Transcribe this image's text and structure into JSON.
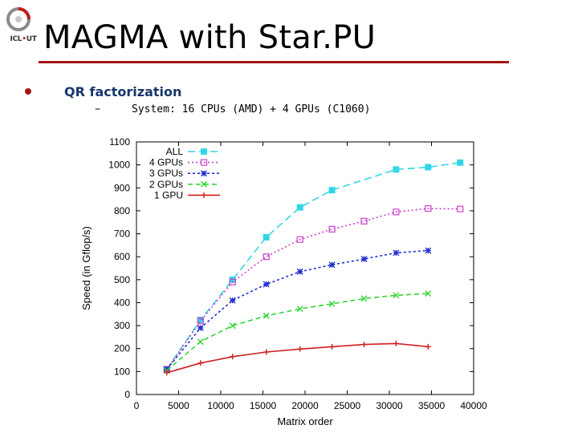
{
  "slide": {
    "title": "MAGMA with Star.PU",
    "logo_text": "ICL",
    "logo_subtext": "UT",
    "bullet": "QR factorization",
    "sub_dash": "–",
    "sub_bullet": "System: 16 CPUs (AMD) + 4 GPUs (C1060)"
  },
  "colors": {
    "accent": "#a31515",
    "bullet_text": "#17376b"
  },
  "chart_data": {
    "type": "line",
    "title": "",
    "xlabel": "Matrix order",
    "ylabel": "Speed (in Gflop/s)",
    "xlim": [
      0,
      40000
    ],
    "ylim": [
      0,
      1100
    ],
    "xticks": [
      "0",
      "5000",
      "10000",
      "15000",
      "20000",
      "25000",
      "30000",
      "35000",
      "40000"
    ],
    "yticks": [
      "0",
      "100",
      "200",
      "300",
      "400",
      "500",
      "600",
      "700",
      "800",
      "900",
      "1000",
      "1100"
    ],
    "legend_position": "top-left",
    "series": [
      {
        "name": "ALL",
        "color": "#33d6e6",
        "dash": "9,5",
        "marker": "square",
        "x": [
          3600,
          7600,
          11400,
          15400,
          19400,
          23200,
          30800,
          34600,
          38400
        ],
        "y": [
          110,
          325,
          500,
          685,
          815,
          890,
          980,
          990,
          1010
        ]
      },
      {
        "name": "4 GPUs",
        "color": "#c840c8",
        "dash": "2,3",
        "marker": "square-open",
        "x": [
          3600,
          7600,
          11400,
          15400,
          19400,
          23200,
          27000,
          30800,
          34600,
          38400
        ],
        "y": [
          110,
          320,
          490,
          600,
          675,
          720,
          755,
          795,
          810,
          808
        ]
      },
      {
        "name": "3 GPUs",
        "color": "#1f2fd1",
        "dash": "3,3",
        "marker": "star",
        "x": [
          3600,
          7600,
          11400,
          15400,
          19400,
          23200,
          27000,
          30800,
          34600
        ],
        "y": [
          110,
          290,
          410,
          480,
          535,
          565,
          590,
          617,
          627
        ]
      },
      {
        "name": "2 GPUs",
        "color": "#33d633",
        "dash": "6,4",
        "marker": "x",
        "x": [
          3600,
          7600,
          11400,
          15400,
          19400,
          23200,
          27000,
          30800,
          34600
        ],
        "y": [
          105,
          230,
          300,
          343,
          373,
          395,
          418,
          432,
          440
        ]
      },
      {
        "name": "1 GPU",
        "color": "#d11f1f",
        "dash": "",
        "marker": "plus",
        "x": [
          3600,
          7600,
          11400,
          15400,
          19400,
          23200,
          27000,
          30800,
          34600
        ],
        "y": [
          95,
          137,
          165,
          185,
          198,
          208,
          218,
          222,
          208
        ]
      }
    ]
  }
}
